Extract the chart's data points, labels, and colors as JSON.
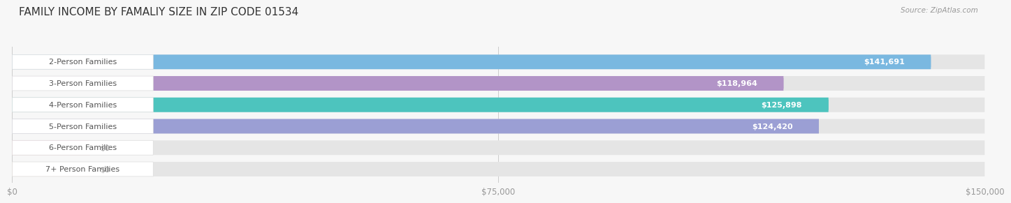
{
  "title": "FAMILY INCOME BY FAMALIY SIZE IN ZIP CODE 01534",
  "source": "Source: ZipAtlas.com",
  "categories": [
    "2-Person Families",
    "3-Person Families",
    "4-Person Families",
    "5-Person Families",
    "6-Person Families",
    "7+ Person Families"
  ],
  "values": [
    141691,
    118964,
    125898,
    124420,
    0,
    0
  ],
  "bar_colors": [
    "#7ab8e0",
    "#b294c7",
    "#4dc4be",
    "#9b9fd4",
    "#f4a0b0",
    "#f5d5a8"
  ],
  "bar_bg_color": "#e5e5e5",
  "label_bg_color": "#ffffff",
  "label_text_color": "#555555",
  "value_text_color": "#ffffff",
  "xlim": [
    0,
    150000
  ],
  "xticks": [
    0,
    75000,
    150000
  ],
  "xtick_labels": [
    "$0",
    "$75,000",
    "$150,000"
  ],
  "fig_bg_color": "#f7f7f7",
  "bar_height": 0.68,
  "title_fontsize": 11,
  "label_fontsize": 8,
  "value_fontsize": 8,
  "source_fontsize": 7.5,
  "zero_stub_value": 12000
}
